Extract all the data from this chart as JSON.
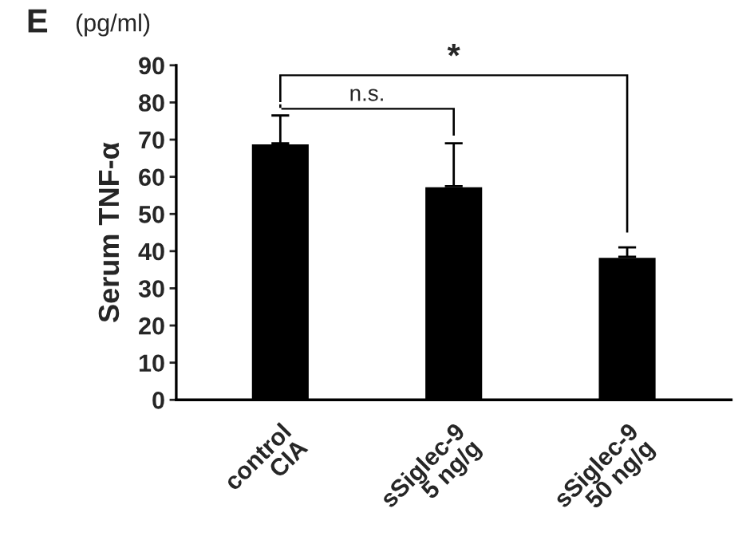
{
  "chart_data": {
    "type": "bar",
    "ylabel": "Serum TNF-α",
    "annotations": [
      "E",
      "(pg/ml)",
      "n.s.",
      "*"
    ],
    "categories": [
      "control\nCIA",
      "sSiglec-9\n5 ng/g",
      "sSiglec-9\n50 ng/g"
    ],
    "values": [
      69,
      57.5,
      38.5
    ],
    "errors": [
      [
        69,
        76.5
      ],
      [
        57.5,
        69
      ],
      [
        38.5,
        41
      ]
    ],
    "color": "#000000",
    "ylim": [
      0,
      90
    ],
    "yticks": [
      0,
      10,
      20,
      30,
      40,
      50,
      60,
      70,
      80,
      90
    ],
    "grid": false,
    "legend": false
  }
}
